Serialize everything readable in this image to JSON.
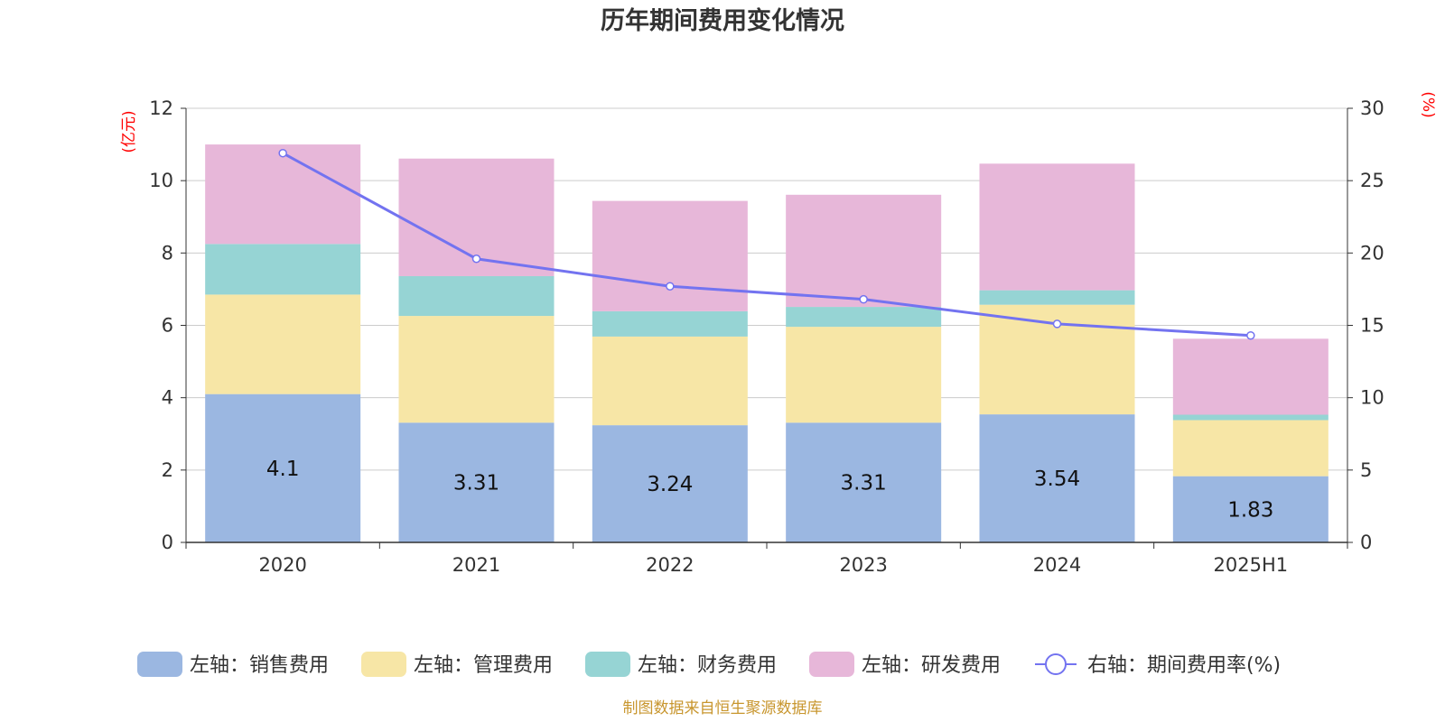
{
  "title": "历年期间费用变化情况",
  "left_unit": "(亿元)",
  "right_unit": "(%)",
  "source": "制图数据来自恒生聚源数据库",
  "chart_data": {
    "type": "bar",
    "stacked": true,
    "categories": [
      "2020",
      "2021",
      "2022",
      "2023",
      "2024",
      "2025H1"
    ],
    "series": [
      {
        "name": "左轴：销售费用",
        "axis": "left",
        "color": "#9bb7e1",
        "values": [
          4.1,
          3.31,
          3.24,
          3.31,
          3.54,
          1.83
        ],
        "labels": [
          "4.1",
          "3.31",
          "3.24",
          "3.31",
          "3.54",
          "1.83"
        ]
      },
      {
        "name": "左轴：管理费用",
        "axis": "left",
        "color": "#f7e6a6",
        "values": [
          2.75,
          2.95,
          2.45,
          2.65,
          3.03,
          1.55
        ]
      },
      {
        "name": "左轴：财务费用",
        "axis": "left",
        "color": "#96d4d4",
        "values": [
          1.4,
          1.1,
          0.7,
          0.55,
          0.4,
          0.15
        ]
      },
      {
        "name": "左轴：研发费用",
        "axis": "left",
        "color": "#e7b7d9",
        "values": [
          2.75,
          3.25,
          3.05,
          3.1,
          3.5,
          2.1
        ]
      },
      {
        "name": "右轴：期间费用率(%)",
        "axis": "right",
        "type": "line",
        "color": "#7373f0",
        "values": [
          26.9,
          19.6,
          17.7,
          16.8,
          15.1,
          14.3
        ]
      }
    ],
    "left_axis": {
      "min": 0,
      "max": 12,
      "ticks": [
        "0",
        "2",
        "4",
        "6",
        "8",
        "10",
        "12"
      ]
    },
    "right_axis": {
      "min": 0,
      "max": 30,
      "ticks": [
        "0",
        "5",
        "10",
        "15",
        "20",
        "25",
        "30"
      ]
    },
    "grid": true,
    "legend_position": "bottom"
  }
}
